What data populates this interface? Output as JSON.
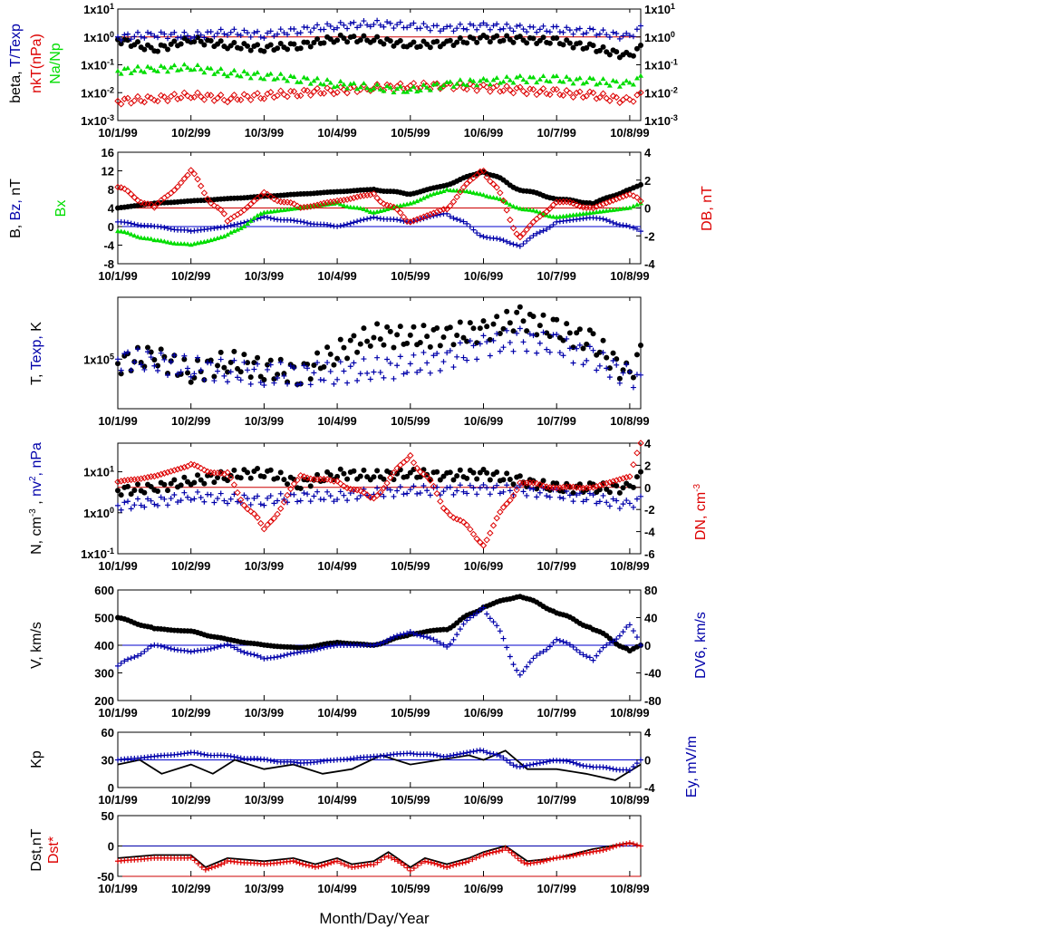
{
  "colors": {
    "black": "#000000",
    "blue": "#0000aa",
    "red": "#dd0000",
    "green": "#00dd00",
    "refline_red": "#cc0000",
    "refline_blue": "#0000cc"
  },
  "x_axis": {
    "ticks": [
      "10/1/99",
      "10/2/99",
      "10/3/99",
      "10/4/99",
      "10/5/99",
      "10/6/99",
      "10/7/99",
      "10/8/99"
    ],
    "range_days": [
      0,
      7.15
    ],
    "xlabel": "Month/Day/Year"
  },
  "panels": [
    {
      "id": "beta",
      "left_label_parts": [
        {
          "text": "beta, ",
          "color": "#000000"
        },
        {
          "text": "T/Texp",
          "color": "#0000aa"
        }
      ],
      "left_label2_parts": [
        {
          "text": "nkT(nPa)",
          "color": "#dd0000"
        }
      ],
      "left_label3_parts": [
        {
          "text": "Na/Np",
          "color": "#00dd00"
        }
      ],
      "left_ticks": [
        "1x10-3",
        "1x10-2",
        "1x10-1",
        "1x100",
        "1x101"
      ],
      "right_ticks": [
        "1x10-3",
        "1x10-2",
        "1x10-1",
        "1x100",
        "1x101"
      ]
    },
    {
      "id": "bfield",
      "left_label_parts": [
        {
          "text": "B, ",
          "color": "#000000"
        },
        {
          "text": "Bz, ",
          "color": "#0000aa"
        },
        {
          "text": "nT",
          "color": "#000000"
        }
      ],
      "left_label2_parts": [
        {
          "text": "Bx",
          "color": "#00dd00"
        }
      ],
      "right_label_parts": [
        {
          "text": "DB, nT",
          "color": "#dd0000"
        }
      ],
      "left_ticks": [
        "-8",
        "-4",
        "0",
        "4",
        "8",
        "12",
        "16"
      ],
      "right_ticks": [
        "-4",
        "-2",
        "0",
        "2",
        "4"
      ]
    },
    {
      "id": "temp",
      "left_label_parts": [
        {
          "text": "T, ",
          "color": "#000000"
        },
        {
          "text": "Texp, ",
          "color": "#0000aa"
        },
        {
          "text": "K",
          "color": "#000000"
        }
      ],
      "left_ticks": [
        "1x105"
      ]
    },
    {
      "id": "density",
      "left_label_parts": [
        {
          "text": "N, cm-3 , ",
          "color": "#000000"
        },
        {
          "text": "nv2, nPa",
          "color": "#0000aa"
        }
      ],
      "right_label_parts": [
        {
          "text": "DN, cm-3",
          "color": "#dd0000"
        }
      ],
      "left_ticks": [
        "1x10-1",
        "1x100",
        "1x101"
      ],
      "right_ticks": [
        "-6",
        "-4",
        "-2",
        "0",
        "2",
        "4"
      ]
    },
    {
      "id": "velocity",
      "left_label_parts": [
        {
          "text": "V, km/s",
          "color": "#000000"
        }
      ],
      "right_label_parts": [
        {
          "text": "DV6, km/s",
          "color": "#0000aa"
        }
      ],
      "left_ticks": [
        "200",
        "300",
        "400",
        "500",
        "600"
      ],
      "right_ticks": [
        "-80",
        "-40",
        "0",
        "40",
        "80"
      ]
    },
    {
      "id": "kp",
      "left_label_parts": [
        {
          "text": "Kp",
          "color": "#000000"
        }
      ],
      "right_label_parts": [
        {
          "text": "Ey,  mV/m",
          "color": "#0000aa"
        }
      ],
      "left_ticks": [
        "0",
        "30",
        "60"
      ],
      "right_ticks": [
        "-4",
        "0",
        "4"
      ]
    },
    {
      "id": "dst",
      "left_label_parts": [
        {
          "text": "Dst,nT",
          "color": "#000000"
        }
      ],
      "left_label2_parts": [
        {
          "text": "Dst*",
          "color": "#dd0000"
        }
      ],
      "left_ticks": [
        "-50",
        "0",
        "50"
      ]
    }
  ],
  "chart_data": [
    {
      "type": "scatter",
      "panel": "beta",
      "x_unit": "days since 10/1/99",
      "y_scale": "log",
      "ylim": [
        0.001,
        10
      ],
      "reference_line": {
        "y": 1,
        "color": "#cc0000"
      },
      "series": [
        {
          "name": "beta",
          "color": "#000000",
          "marker": "dot",
          "x": [
            0,
            0.5,
            1,
            1.5,
            2,
            2.5,
            3,
            3.5,
            4,
            4.5,
            5,
            5.5,
            6,
            6.5,
            7,
            7.15
          ],
          "y": [
            0.8,
            0.35,
            0.8,
            0.5,
            0.4,
            0.5,
            0.9,
            0.8,
            0.5,
            0.6,
            0.9,
            0.8,
            0.7,
            0.4,
            0.2,
            0.5
          ]
        },
        {
          "name": "T/Texp",
          "color": "#0000aa",
          "marker": "plus",
          "x": [
            0,
            0.5,
            1,
            1.5,
            2,
            2.5,
            3,
            3.5,
            4,
            4.5,
            5,
            5.5,
            6,
            6.5,
            7,
            7.15
          ],
          "y": [
            1.0,
            1.2,
            1.1,
            1.5,
            1.2,
            1.8,
            2.5,
            3.0,
            2.5,
            2.0,
            2.5,
            2.0,
            1.8,
            1.5,
            1.0,
            2.5
          ]
        },
        {
          "name": "nkT(nPa)",
          "color": "#dd0000",
          "marker": "diamond",
          "x": [
            0,
            0.5,
            1,
            1.5,
            2,
            2.5,
            3,
            3.5,
            4,
            4.5,
            5,
            5.5,
            6,
            6.5,
            7,
            7.15
          ],
          "y": [
            0.005,
            0.006,
            0.008,
            0.006,
            0.008,
            0.01,
            0.012,
            0.015,
            0.017,
            0.018,
            0.015,
            0.012,
            0.01,
            0.008,
            0.005,
            0.01
          ]
        },
        {
          "name": "Na/Np",
          "color": "#00dd00",
          "marker": "triangle",
          "x": [
            0,
            0.5,
            1,
            1.5,
            2,
            2.5,
            3,
            3.5,
            4,
            4.5,
            5,
            5.5,
            6,
            6.5,
            7,
            7.15
          ],
          "y": [
            0.06,
            0.07,
            0.08,
            0.05,
            0.04,
            0.03,
            0.02,
            0.015,
            0.012,
            0.02,
            0.025,
            0.03,
            0.03,
            0.025,
            0.02,
            0.04
          ]
        }
      ]
    },
    {
      "type": "scatter",
      "panel": "bfield",
      "x_unit": "days since 10/1/99",
      "ylim": [
        -8,
        16
      ],
      "ylim_right": [
        -4,
        4
      ],
      "reference_line": {
        "y_right": 0,
        "color": "#cc0000"
      },
      "reference_line2": {
        "y": 0,
        "color": "#0000cc"
      },
      "series": [
        {
          "name": "B",
          "color": "#000000",
          "marker": "dot",
          "x": [
            0,
            0.5,
            1,
            1.5,
            2,
            2.5,
            3,
            3.5,
            4,
            4.5,
            5,
            5.5,
            6,
            6.5,
            7,
            7.15
          ],
          "y": [
            4,
            5,
            5.5,
            6,
            6.5,
            7,
            7.5,
            8,
            7,
            9,
            12,
            8,
            6,
            5,
            8,
            9
          ]
        },
        {
          "name": "Bz",
          "color": "#0000aa",
          "marker": "plus",
          "x": [
            0,
            0.5,
            1,
            1.5,
            2,
            2.5,
            3,
            3.5,
            4,
            4.5,
            5,
            5.5,
            6,
            6.5,
            7,
            7.15
          ],
          "y": [
            1,
            0,
            -1,
            0,
            2,
            1,
            0,
            2,
            1,
            3,
            -2,
            -4,
            1,
            2,
            0,
            -1
          ]
        },
        {
          "name": "Bx",
          "color": "#00dd00",
          "marker": "triangle",
          "x": [
            0,
            0.5,
            1,
            1.5,
            2,
            2.5,
            3,
            3.5,
            4,
            4.5,
            5,
            5.5,
            6,
            6.5,
            7,
            7.15
          ],
          "y": [
            -1,
            -3,
            -4,
            -2,
            3,
            4,
            5,
            3,
            5,
            8,
            7,
            4,
            2,
            3,
            4,
            5
          ]
        },
        {
          "name": "DB",
          "color": "#dd0000",
          "marker": "diamond",
          "axis": "right",
          "x": [
            0,
            0.5,
            1,
            1.5,
            2,
            2.5,
            3,
            3.5,
            4,
            4.5,
            5,
            5.5,
            6,
            6.5,
            7,
            7.15
          ],
          "y": [
            1.5,
            0,
            2.5,
            -1,
            1,
            0,
            0.5,
            1,
            -1,
            0,
            3,
            -2,
            0.5,
            0,
            1,
            0.5
          ]
        }
      ]
    },
    {
      "type": "scatter",
      "panel": "temp",
      "x_unit": "days since 10/1/99",
      "y_scale": "log",
      "ylim": [
        30000,
        450000
      ],
      "series": [
        {
          "name": "T",
          "color": "#000000",
          "marker": "dot",
          "x": [
            0,
            0.5,
            1,
            1.5,
            2,
            2.5,
            3,
            3.5,
            4,
            4.5,
            5,
            5.5,
            6,
            6.5,
            7,
            7.15
          ],
          "y": [
            90000,
            110000,
            70000,
            95000,
            80000,
            70000,
            120000,
            180000,
            170000,
            180000,
            200000,
            270000,
            200000,
            150000,
            65000,
            140000
          ]
        },
        {
          "name": "Texp",
          "color": "#0000aa",
          "marker": "plus",
          "x": [
            0,
            0.5,
            1,
            1.5,
            2,
            2.5,
            3,
            3.5,
            4,
            4.5,
            5,
            5.5,
            6,
            6.5,
            7,
            7.15
          ],
          "y": [
            100000,
            95000,
            80000,
            75000,
            70000,
            70000,
            72000,
            78000,
            85000,
            100000,
            140000,
            160000,
            140000,
            100000,
            65000,
            68000
          ]
        }
      ]
    },
    {
      "type": "scatter",
      "panel": "density",
      "x_unit": "days since 10/1/99",
      "y_scale": "log",
      "ylim": [
        0.1,
        50
      ],
      "ylim_right": [
        -6,
        4
      ],
      "reference_line": {
        "y_right": 0,
        "color": "#cc0000"
      },
      "series": [
        {
          "name": "N",
          "color": "#000000",
          "marker": "dot",
          "x": [
            0,
            0.5,
            1,
            1.5,
            2,
            2.5,
            3,
            3.5,
            4,
            4.5,
            5,
            5.5,
            6,
            6.5,
            7,
            7.15
          ],
          "y": [
            3.5,
            4,
            6,
            8,
            10,
            5,
            9,
            8,
            9,
            8,
            9,
            6,
            4,
            4,
            4,
            10
          ]
        },
        {
          "name": "nv2",
          "color": "#0000aa",
          "marker": "plus",
          "x": [
            0,
            0.5,
            1,
            1.5,
            2,
            2.5,
            3,
            3.5,
            4,
            4.5,
            5,
            5.5,
            6,
            6.5,
            7,
            7.15
          ],
          "y": [
            1.5,
            1.8,
            2.5,
            2.2,
            2.0,
            2.5,
            2.5,
            3.0,
            3.5,
            3.5,
            3.8,
            3.5,
            2.8,
            2.2,
            1.5,
            2.5
          ]
        },
        {
          "name": "DN",
          "color": "#dd0000",
          "marker": "diamond",
          "axis": "right",
          "x": [
            0,
            0.5,
            1,
            1.5,
            2,
            2.5,
            3,
            3.5,
            4,
            4.5,
            5,
            5.5,
            6,
            6.5,
            7,
            7.15
          ],
          "y": [
            0.5,
            1,
            2,
            1,
            -4,
            1,
            0.5,
            -1,
            3,
            -2,
            -5,
            0.5,
            0,
            0,
            1,
            4
          ]
        }
      ]
    },
    {
      "type": "scatter",
      "panel": "velocity",
      "x_unit": "days since 10/1/99",
      "ylim": [
        200,
        600
      ],
      "ylim_right": [
        -80,
        80
      ],
      "reference_line": {
        "y_right": 0,
        "color": "#0000cc"
      },
      "series": [
        {
          "name": "V",
          "color": "#000000",
          "marker": "dot",
          "x": [
            0,
            0.5,
            1,
            1.5,
            2,
            2.5,
            3,
            3.5,
            4,
            4.5,
            5,
            5.5,
            6,
            6.5,
            7,
            7.15
          ],
          "y": [
            500,
            460,
            450,
            420,
            400,
            390,
            410,
            400,
            440,
            460,
            540,
            580,
            520,
            460,
            380,
            400
          ]
        },
        {
          "name": "DV6",
          "color": "#0000aa",
          "marker": "plus",
          "axis": "right",
          "x": [
            0,
            0.5,
            1,
            1.5,
            2,
            2.5,
            3,
            3.5,
            4,
            4.5,
            5,
            5.5,
            6,
            6.5,
            7,
            7.15
          ],
          "y": [
            -30,
            0,
            -10,
            0,
            -20,
            -10,
            0,
            0,
            20,
            0,
            60,
            -40,
            10,
            -20,
            30,
            0
          ]
        }
      ]
    },
    {
      "type": "line",
      "panel": "kp",
      "x_unit": "days since 10/1/99",
      "ylim": [
        0,
        60
      ],
      "ylim_right": [
        -4,
        4
      ],
      "reference_line": {
        "y_right": 0,
        "color": "#0000cc"
      },
      "series": [
        {
          "name": "Kp",
          "color": "#000000",
          "marker": "line",
          "x": [
            0,
            0.3,
            0.6,
            1,
            1.3,
            1.6,
            2,
            2.4,
            2.8,
            3.2,
            3.6,
            4,
            4.4,
            4.8,
            5,
            5.3,
            5.6,
            6,
            6.4,
            6.8,
            7.15
          ],
          "y": [
            25,
            30,
            15,
            25,
            15,
            30,
            20,
            25,
            15,
            20,
            35,
            25,
            30,
            35,
            30,
            40,
            20,
            20,
            15,
            8,
            25
          ]
        },
        {
          "name": "Ey",
          "color": "#0000aa",
          "marker": "plus",
          "axis": "right",
          "x": [
            0,
            0.5,
            1,
            1.5,
            2,
            2.5,
            3,
            3.5,
            4,
            4.5,
            5,
            5.5,
            6,
            6.5,
            7,
            7.15
          ],
          "y": [
            0,
            0.5,
            1,
            0.5,
            0,
            -0.5,
            0,
            0.5,
            1,
            0.5,
            1.5,
            -1,
            0,
            -1,
            -1.5,
            0
          ]
        }
      ]
    },
    {
      "type": "line",
      "panel": "dst",
      "x_unit": "days since 10/1/99",
      "ylim": [
        -50,
        50
      ],
      "reference_line": {
        "y": 0,
        "color": "#0000aa"
      },
      "reference_line2": {
        "y": -50,
        "color": "#cc0000"
      },
      "series": [
        {
          "name": "Dst",
          "color": "#000000",
          "marker": "line",
          "x": [
            0,
            0.5,
            1,
            1.2,
            1.5,
            2,
            2.4,
            2.7,
            3,
            3.2,
            3.5,
            3.7,
            4,
            4.2,
            4.5,
            4.8,
            5,
            5.3,
            5.6,
            6,
            6.5,
            7,
            7.15
          ],
          "y": [
            -20,
            -15,
            -15,
            -35,
            -20,
            -25,
            -20,
            -30,
            -20,
            -30,
            -25,
            -10,
            -35,
            -20,
            -30,
            -20,
            -10,
            0,
            -25,
            -20,
            -5,
            5,
            0
          ]
        },
        {
          "name": "Dst*",
          "color": "#dd0000",
          "marker": "plus",
          "x": [
            0,
            0.5,
            1,
            1.2,
            1.5,
            2,
            2.4,
            2.7,
            3,
            3.2,
            3.5,
            3.7,
            4,
            4.2,
            4.5,
            4.8,
            5,
            5.3,
            5.6,
            6,
            6.5,
            7,
            7.15
          ],
          "y": [
            -25,
            -20,
            -20,
            -40,
            -25,
            -30,
            -25,
            -35,
            -25,
            -35,
            -30,
            -15,
            -40,
            -25,
            -35,
            -25,
            -15,
            -5,
            -30,
            -20,
            -10,
            5,
            0
          ]
        }
      ]
    }
  ]
}
